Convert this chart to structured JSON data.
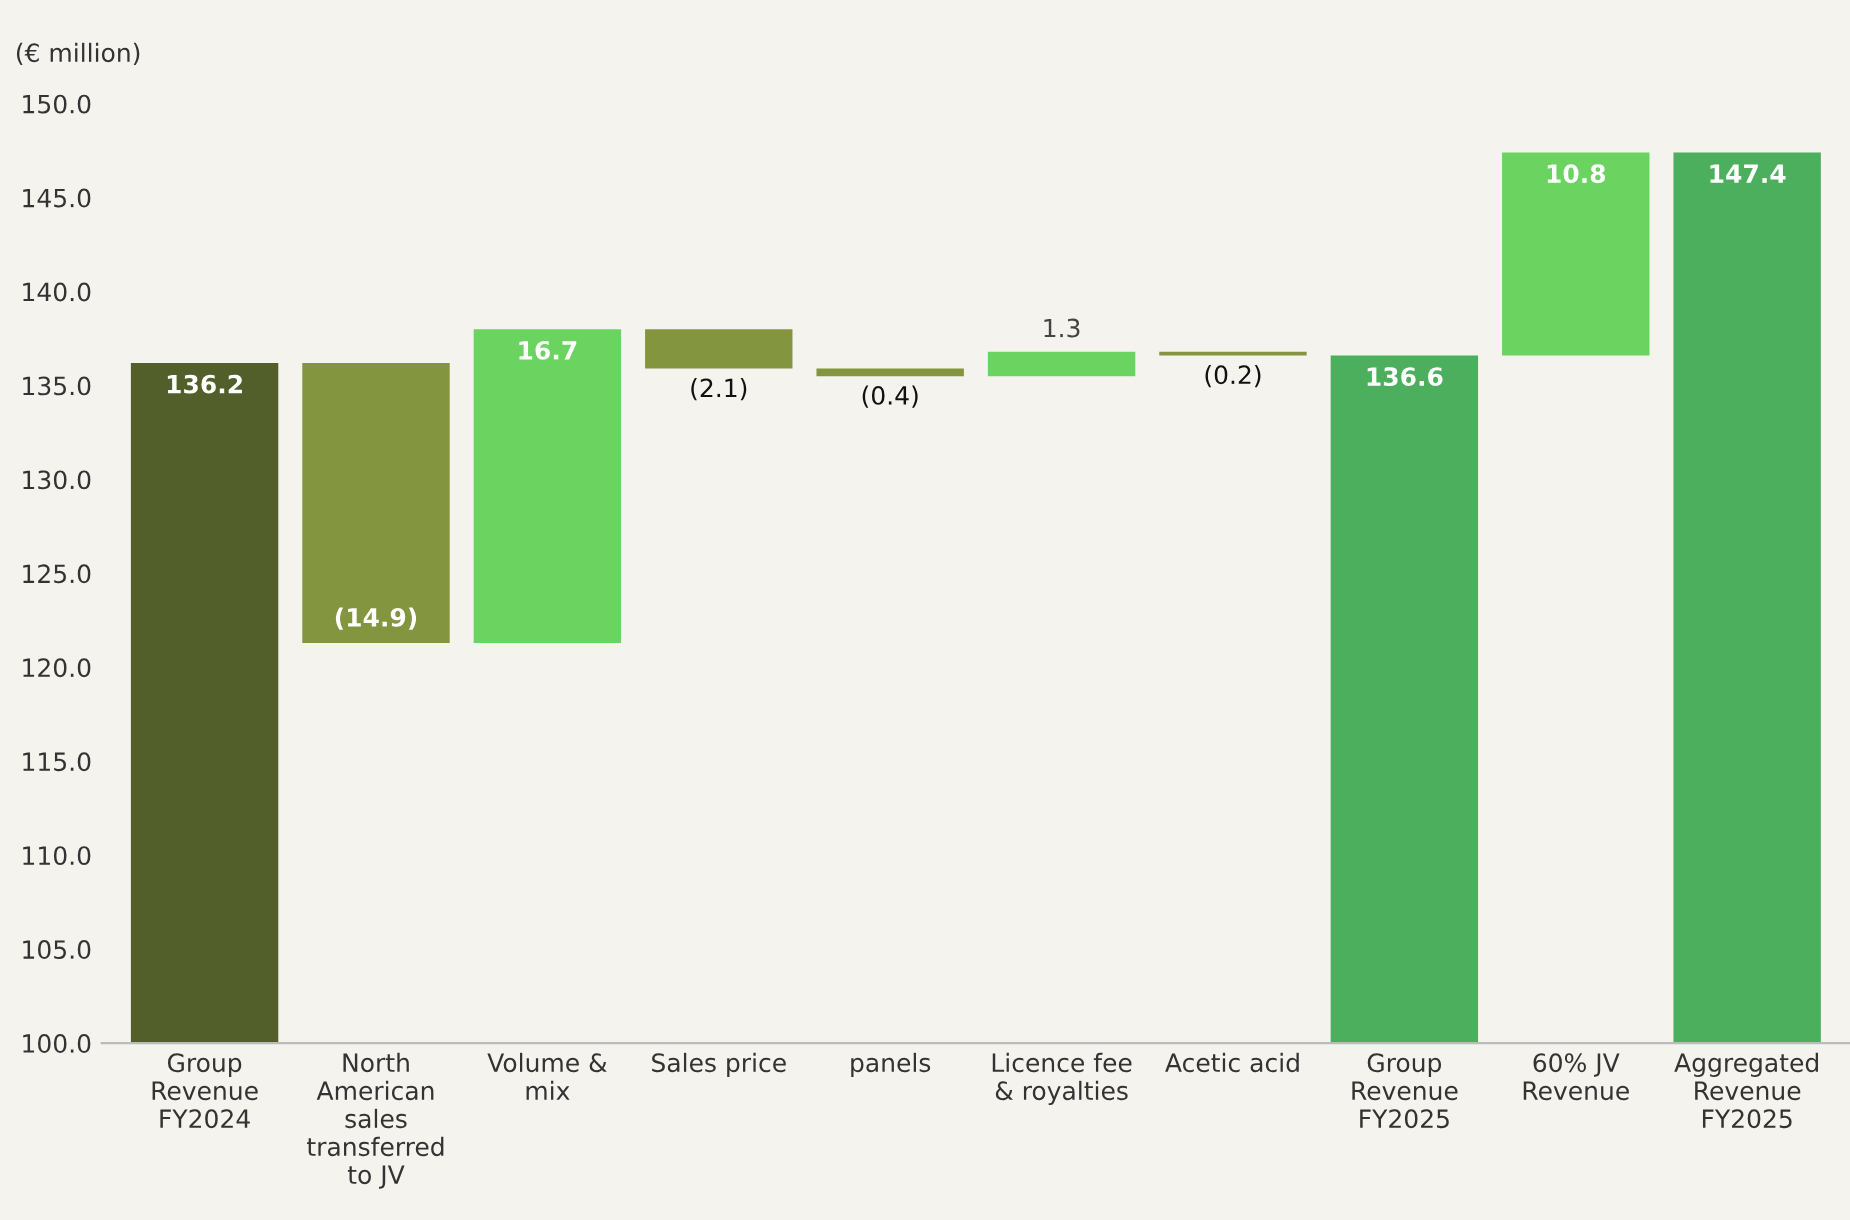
{
  "chart_data": {
    "type": "bar",
    "ylabel": "(€ million)",
    "categories": [
      "Group Revenue FY2024",
      "North American sales transferred to JV",
      "Volume & mix",
      "Sales price",
      "panels",
      "Licence fee & royalties",
      "Acetic acid",
      "Group Revenue FY2025",
      "60% JV Revenue",
      "Aggregated Revenue FY2025"
    ],
    "base": [
      100,
      136.2,
      121.3,
      138.0,
      135.9,
      135.5,
      136.8,
      100,
      136.6,
      100
    ],
    "values": [
      36.2,
      -14.9,
      16.7,
      -2.1,
      -0.4,
      1.3,
      -0.2,
      36.6,
      10.8,
      47.4
    ],
    "value_labels": [
      "136.2",
      "(14.9)",
      "16.7",
      "(2.1)",
      "(0.4)",
      "1.3",
      "(0.2)",
      "136.6",
      "10.8",
      "147.4"
    ],
    "colors": [
      "#535f2a",
      "#84953f",
      "#6bd35f",
      "#84953f",
      "#84953f",
      "#6bd35f",
      "#84953f",
      "#4caf5e",
      "#6bd35f",
      "#4caf5e"
    ],
    "ylim": [
      100,
      150
    ],
    "yticks": [
      {
        "value": 100,
        "label": "100.0"
      },
      {
        "value": 105,
        "label": "105.0"
      },
      {
        "value": 110,
        "label": "110.0"
      },
      {
        "value": 115,
        "label": "115.0"
      },
      {
        "value": 120,
        "label": "120.0"
      },
      {
        "value": 125,
        "label": "125.0"
      },
      {
        "value": 130,
        "label": "130.0"
      },
      {
        "value": 135,
        "label": "135.0"
      },
      {
        "value": 140,
        "label": "140.0"
      },
      {
        "value": 145,
        "label": "145.0"
      },
      {
        "value": 150,
        "label": "150.0"
      }
    ],
    "grid": false,
    "legend": false
  }
}
